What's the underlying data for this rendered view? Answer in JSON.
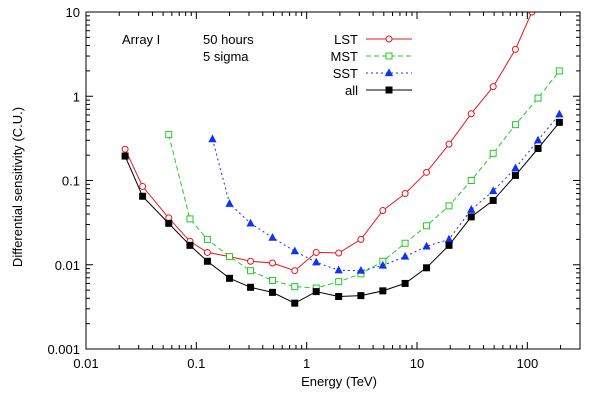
{
  "chart_data": {
    "type": "line",
    "title": "",
    "xlabel": "Energy (TeV)",
    "ylabel": "Differential sensitivity (C.U.)",
    "xscale": "log",
    "yscale": "log",
    "xlim": [
      0.01,
      300
    ],
    "ylim": [
      0.001,
      10
    ],
    "grid": false,
    "legend_position": "top-center",
    "x_ticks": [
      {
        "value": 0.01,
        "label": "0.01"
      },
      {
        "value": 0.1,
        "label": "0.1"
      },
      {
        "value": 1,
        "label": "1"
      },
      {
        "value": 10,
        "label": "10"
      },
      {
        "value": 100,
        "label": "100"
      }
    ],
    "y_ticks": [
      {
        "value": 0.001,
        "label": "0.001"
      },
      {
        "value": 0.01,
        "label": "0.01"
      },
      {
        "value": 0.1,
        "label": "0.1"
      },
      {
        "value": 1,
        "label": "1"
      },
      {
        "value": 10,
        "label": "10"
      }
    ],
    "annotations": [
      "Array I",
      "50 hours",
      "5 sigma"
    ],
    "series": [
      {
        "name": "LST",
        "color": "#e8141c",
        "dash": "solid",
        "marker": "circle",
        "x": [
          0.0226,
          0.0326,
          0.0562,
          0.0875,
          0.126,
          0.2,
          0.31,
          0.49,
          0.78,
          1.22,
          1.95,
          3.1,
          4.9,
          7.8,
          12.2,
          19.5,
          31,
          49,
          78,
          110
        ],
        "y": [
          0.235,
          0.085,
          0.036,
          0.019,
          0.014,
          0.0125,
          0.011,
          0.0105,
          0.0085,
          0.014,
          0.0138,
          0.02,
          0.044,
          0.07,
          0.125,
          0.27,
          0.62,
          1.3,
          3.6,
          10
        ]
      },
      {
        "name": "MST",
        "color": "#22cc22",
        "dash": "dashed",
        "marker": "square",
        "x": [
          0.0562,
          0.0875,
          0.126,
          0.2,
          0.31,
          0.49,
          0.78,
          1.22,
          1.95,
          3.1,
          4.9,
          7.8,
          12.2,
          19.5,
          31,
          49,
          78,
          125,
          195
        ],
        "y": [
          0.35,
          0.035,
          0.02,
          0.0125,
          0.0085,
          0.0065,
          0.0055,
          0.0053,
          0.0063,
          0.0078,
          0.011,
          0.018,
          0.029,
          0.05,
          0.1,
          0.21,
          0.46,
          0.95,
          2.0
        ]
      },
      {
        "name": "SST",
        "color": "#1133ee",
        "dash": "dotted",
        "marker": "triangle",
        "x": [
          0.14,
          0.2,
          0.31,
          0.49,
          0.78,
          1.22,
          1.95,
          3.1,
          4.9,
          7.8,
          12.2,
          19.5,
          31,
          49,
          78,
          125,
          195
        ],
        "y": [
          0.31,
          0.053,
          0.031,
          0.021,
          0.0145,
          0.0107,
          0.0086,
          0.0085,
          0.0098,
          0.0125,
          0.0165,
          0.02,
          0.045,
          0.075,
          0.14,
          0.3,
          0.61
        ]
      },
      {
        "name": "all",
        "color": "#000000",
        "dash": "solid",
        "marker": "filled-square",
        "x": [
          0.0226,
          0.0326,
          0.0562,
          0.0875,
          0.126,
          0.2,
          0.31,
          0.49,
          0.78,
          1.22,
          1.95,
          3.1,
          4.9,
          7.8,
          12.2,
          19.5,
          31,
          49,
          78,
          125,
          195
        ],
        "y": [
          0.195,
          0.065,
          0.031,
          0.017,
          0.011,
          0.0069,
          0.0054,
          0.0047,
          0.0035,
          0.0048,
          0.0042,
          0.0043,
          0.0049,
          0.006,
          0.0092,
          0.017,
          0.037,
          0.058,
          0.115,
          0.24,
          0.49
        ]
      }
    ]
  }
}
